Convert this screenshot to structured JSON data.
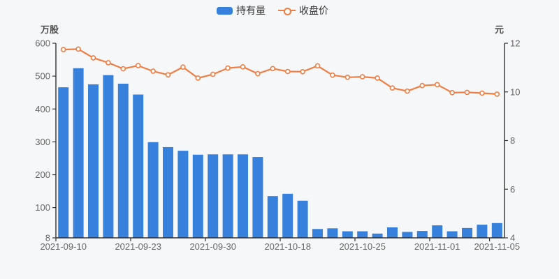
{
  "page": {
    "background": "#f6f7f8"
  },
  "legend": {
    "items": [
      {
        "label": "持有量",
        "type": "bar",
        "color": "#3780dc"
      },
      {
        "label": "收盘价",
        "type": "line",
        "color": "#ef7e45"
      }
    ]
  },
  "chart_data": {
    "type": "bar",
    "title": "",
    "legend_position": "top-center",
    "grid": false,
    "n_points": 30,
    "series": [
      {
        "name": "持有量",
        "type": "bar",
        "axis": "left",
        "unit": "万股",
        "color": "#3780dc",
        "values": [
          466,
          524,
          475,
          503,
          477,
          444,
          299,
          284,
          273,
          261,
          262,
          262,
          262,
          254,
          135,
          142,
          121,
          35,
          37,
          28,
          28,
          21,
          40,
          26,
          29,
          46,
          28,
          38,
          48,
          53
        ]
      },
      {
        "name": "收盘价",
        "type": "line",
        "axis": "right",
        "unit": "元",
        "color": "#ef7e45",
        "marker": "hollow-circle",
        "values": [
          11.74,
          11.76,
          11.4,
          11.2,
          10.95,
          11.08,
          10.85,
          10.7,
          11.02,
          10.57,
          10.72,
          10.98,
          11.03,
          10.75,
          10.96,
          10.84,
          10.83,
          11.07,
          10.69,
          10.6,
          10.62,
          10.57,
          10.16,
          10.03,
          10.26,
          10.3,
          9.97,
          9.98,
          9.95,
          9.91
        ]
      }
    ],
    "x_tick_labels": [
      "2021-09-10",
      "2021-09-23",
      "2021-09-30",
      "2021-10-18",
      "2021-10-25",
      "2021-11-01",
      "2021-11-05"
    ],
    "x_tick_indices": [
      0,
      5,
      10,
      15,
      20,
      25,
      29
    ],
    "left_axis": {
      "unit_label": "万股",
      "min": 8,
      "max": 600,
      "tick_values": [
        600,
        500,
        400,
        300,
        200,
        100,
        8
      ]
    },
    "right_axis": {
      "unit_label": "元",
      "min": 4,
      "max": 12,
      "tick_values": [
        12,
        10,
        8,
        6,
        4
      ]
    },
    "style": {
      "axis_line_color": "#333333",
      "tick_text_color": "#666666",
      "unit_text_color": "#4d4d4d"
    }
  }
}
